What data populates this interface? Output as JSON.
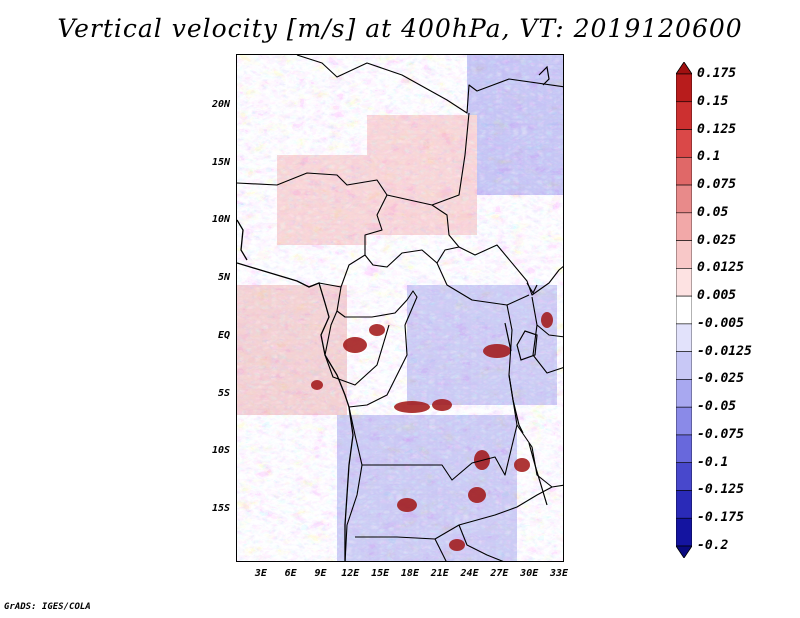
{
  "title": "Vertical velocity [m/s] at 400hPa, VT: 2019120600",
  "footer": "GrADS: IGES/COLA",
  "map": {
    "lat_range": [
      -19.5,
      24.5
    ],
    "lon_range": [
      0.5,
      33.5
    ],
    "lat_labels": [
      "20N",
      "15N",
      "10N",
      "5N",
      "EQ",
      "5S",
      "10S",
      "15S"
    ],
    "lat_values": [
      20,
      15,
      10,
      5,
      0,
      -5,
      -10,
      -15
    ],
    "lon_labels": [
      "3E",
      "6E",
      "9E",
      "12E",
      "15E",
      "18E",
      "21E",
      "24E",
      "27E",
      "30E",
      "33E"
    ],
    "lon_values": [
      3,
      6,
      9,
      12,
      15,
      18,
      21,
      24,
      27,
      30,
      33
    ]
  },
  "colorbar": {
    "labels": [
      "0.175",
      "0.15",
      "0.125",
      "0.1",
      "0.075",
      "0.05",
      "0.025",
      "0.0125",
      "0.005",
      "-0.005",
      "-0.0125",
      "-0.025",
      "-0.05",
      "-0.075",
      "-0.1",
      "-0.125",
      "-0.175",
      "-0.2"
    ],
    "colors": [
      "#a01010",
      "#b81c1c",
      "#cc3030",
      "#da4848",
      "#e06868",
      "#e88a8a",
      "#f2a8a8",
      "#f8c8c8",
      "#fde2e2",
      "#ffffff",
      "#e2e2fb",
      "#c8c8f6",
      "#a8a8f0",
      "#8a8ae8",
      "#6868dc",
      "#4848cc",
      "#2a2ab8",
      "#1414a0",
      "#0a0a80"
    ]
  }
}
